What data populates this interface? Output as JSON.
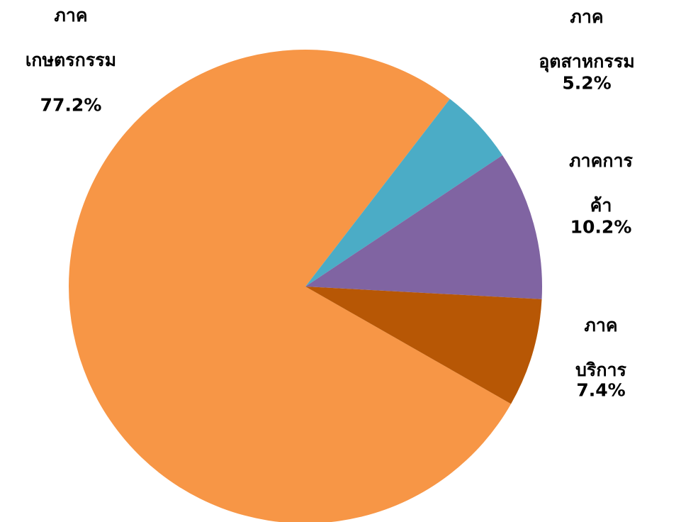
{
  "chart_data": {
    "type": "pie",
    "categories": [
      "ภาค\nเกษตรกรรม",
      "ภาคอุตสาหกรรม",
      "ภาคการค้า",
      "ภาคบริการ"
    ],
    "values": [
      77.2,
      5.2,
      10.2,
      7.4
    ],
    "value_labels": [
      "77.2%",
      "5.2%",
      "10.2%",
      "7.4%"
    ],
    "colors": [
      "#F79646",
      "#4BACC6",
      "#8064A2",
      "#B75705"
    ]
  }
}
